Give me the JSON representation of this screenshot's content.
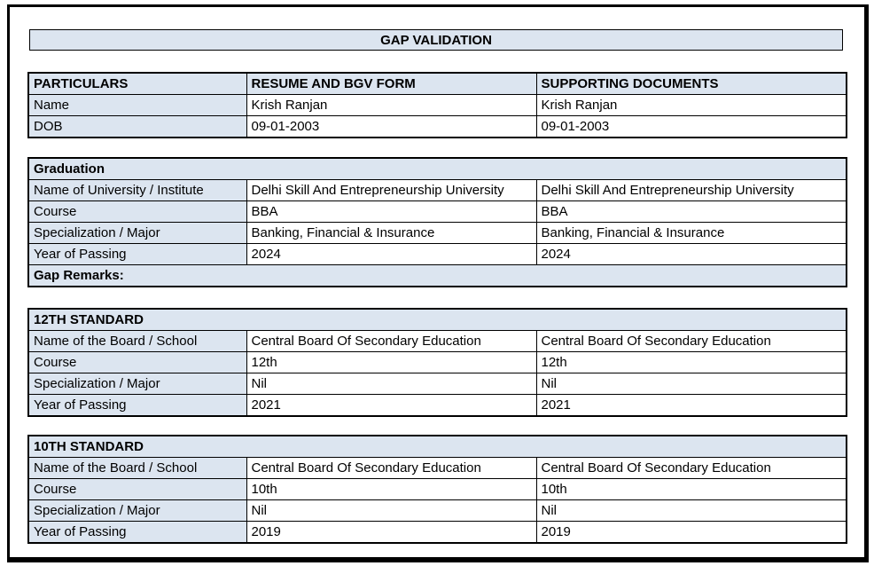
{
  "colors": {
    "header_fill": "#dce5f0",
    "border": "#000000"
  },
  "title": "GAP VALIDATION",
  "particulars": {
    "headers": [
      "PARTICULARS",
      "RESUME AND BGV FORM",
      "SUPPORTING DOCUMENTS"
    ],
    "rows": [
      {
        "label": "Name",
        "resume": "Krish Ranjan",
        "supporting": "Krish Ranjan"
      },
      {
        "label": "DOB",
        "resume": "09-01-2003",
        "supporting": "09-01-2003"
      }
    ]
  },
  "sections": [
    {
      "title": "Graduation",
      "rows": [
        {
          "label": "Name of University / Institute",
          "resume": "Delhi Skill And Entrepreneurship University",
          "supporting": "Delhi Skill And Entrepreneurship University"
        },
        {
          "label": "Course",
          "resume": "BBA",
          "supporting": "BBA"
        },
        {
          "label": "Specialization / Major",
          "resume": "Banking, Financial & Insurance",
          "supporting": "Banking, Financial & Insurance"
        },
        {
          "label": "Year of Passing",
          "resume": "2024",
          "supporting": "2024"
        }
      ],
      "footer": "Gap Remarks:"
    },
    {
      "title": "12TH STANDARD",
      "rows": [
        {
          "label": "Name of the Board / School",
          "resume": "Central Board Of Secondary Education",
          "supporting": "Central Board Of Secondary Education"
        },
        {
          "label": "Course",
          "resume": "12th",
          "supporting": "12th"
        },
        {
          "label": "Specialization / Major",
          "resume": "Nil",
          "supporting": "Nil"
        },
        {
          "label": "Year of Passing",
          "resume": "2021",
          "supporting": "2021"
        }
      ]
    },
    {
      "title": "10TH STANDARD",
      "rows": [
        {
          "label": "Name of the Board / School",
          "resume": "Central Board Of Secondary Education",
          "supporting": "Central Board Of Secondary Education"
        },
        {
          "label": "Course",
          "resume": "10th",
          "supporting": "10th"
        },
        {
          "label": "Specialization / Major",
          "resume": "Nil",
          "supporting": "Nil"
        },
        {
          "label": "Year of Passing",
          "resume": "2019",
          "supporting": "2019"
        }
      ]
    }
  ]
}
